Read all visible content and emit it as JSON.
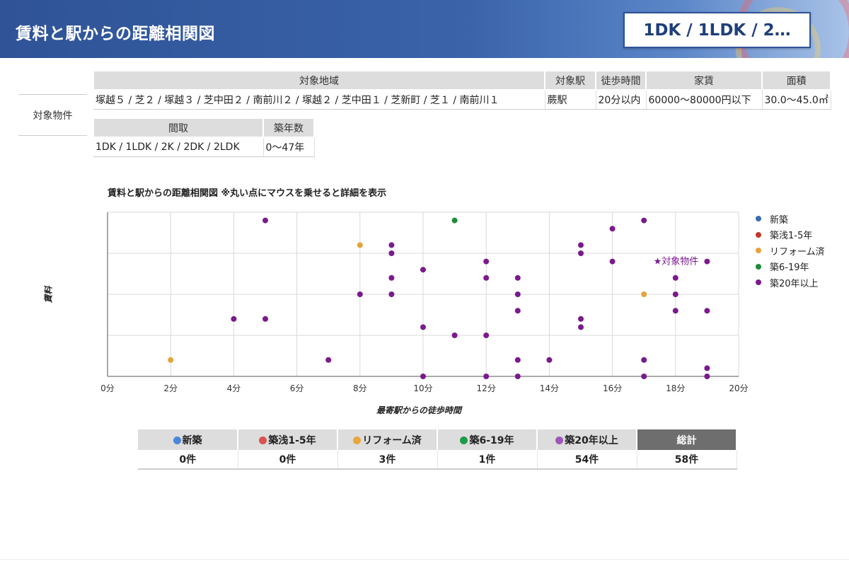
{
  "header": {
    "title": "賃料と駅からの距離相関図",
    "badge": "1DK / 1LDK / 2…"
  },
  "conditions": {
    "side_label": "対象物件",
    "table1": {
      "headers": [
        "対象地域",
        "対象駅",
        "徒歩時間",
        "家賃",
        "面積"
      ],
      "values": [
        "塚越５ / 芝２ / 塚越３ / 芝中田２ / 南前川２ / 塚越２ / 芝中田１ / 芝新町 / 芝１ / 南前川１",
        "蕨駅",
        "20分以内",
        "60000〜80000円以下",
        "30.0〜45.0㎡"
      ]
    },
    "table2": {
      "headers": [
        "間取",
        "築年数"
      ],
      "values": [
        "1DK / 1LDK / 2K / 2DK / 2LDK",
        "0〜47年"
      ]
    }
  },
  "chart_title": "賃料と駅からの距離相関図 ※丸い点にマウスを乗せると詳細を表示",
  "chart_data": {
    "type": "scatter",
    "xlabel": "最寄駅からの徒歩時間",
    "ylabel": "賃料",
    "xlim": [
      0,
      20
    ],
    "ylim": [
      60000,
      80000
    ],
    "x_tick_labels": [
      "0分",
      "2分",
      "4分",
      "6分",
      "8分",
      "10分",
      "12分",
      "14分",
      "16分",
      "18分",
      "20分"
    ],
    "grid": true,
    "legend_position": "right",
    "target_label": "★対象物件",
    "series": [
      {
        "name": "新築",
        "color": "#3b6bb0",
        "points": []
      },
      {
        "name": "築浅1-5年",
        "color": "#c0392b",
        "points": []
      },
      {
        "name": "リフォーム済",
        "color": "#e8a23a",
        "points": [
          [
            2,
            62000
          ],
          [
            8,
            76000
          ],
          [
            17,
            70000
          ]
        ]
      },
      {
        "name": "築6-19年",
        "color": "#1f8a3a",
        "points": [
          [
            11,
            79000
          ]
        ]
      },
      {
        "name": "築20年以上",
        "color": "#7a1a8c",
        "points": [
          [
            5,
            79000
          ],
          [
            4,
            67000
          ],
          [
            5,
            67000
          ],
          [
            7,
            62000
          ],
          [
            8,
            70000
          ],
          [
            9,
            76000
          ],
          [
            9,
            75000
          ],
          [
            9,
            72000
          ],
          [
            9,
            70000
          ],
          [
            10,
            73000
          ],
          [
            10,
            66000
          ],
          [
            10,
            60000
          ],
          [
            11,
            65000
          ],
          [
            12,
            74000
          ],
          [
            12,
            72000
          ],
          [
            12,
            65000
          ],
          [
            12,
            60000
          ],
          [
            13,
            72000
          ],
          [
            13,
            70000
          ],
          [
            13,
            68000
          ],
          [
            13,
            62000
          ],
          [
            13,
            60000
          ],
          [
            14,
            62000
          ],
          [
            15,
            76000
          ],
          [
            15,
            75000
          ],
          [
            15,
            67000
          ],
          [
            15,
            66000
          ],
          [
            16,
            78000
          ],
          [
            16,
            74000
          ],
          [
            17,
            79000
          ],
          [
            17,
            62000
          ],
          [
            17,
            60000
          ],
          [
            18,
            72000
          ],
          [
            18,
            70000
          ],
          [
            18,
            68000
          ],
          [
            19,
            74000
          ],
          [
            19,
            68000
          ],
          [
            19,
            61000
          ],
          [
            19,
            60000
          ]
        ]
      }
    ]
  },
  "summary": {
    "headers": [
      "新築",
      "築浅1-5年",
      "リフォーム済",
      "築6-19年",
      "築20年以上",
      "総計"
    ],
    "dot_colors": [
      "#4a86d9",
      "#d9534f",
      "#e8a53a",
      "#1f9a4a",
      "#9b59b6"
    ],
    "values": [
      "0件",
      "0件",
      "3件",
      "1件",
      "54件",
      "58件"
    ]
  }
}
